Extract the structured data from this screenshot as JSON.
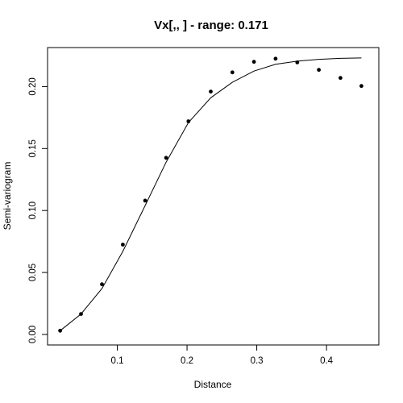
{
  "chart_data": {
    "type": "scatter",
    "title": "Vx[,,   ] - range: 0.171",
    "xlabel": "Distance",
    "ylabel": "Semi-variogram",
    "xlim": [
      0.0,
      0.475
    ],
    "ylim": [
      -0.0085,
      0.2315
    ],
    "x_ticks": [
      0.1,
      0.2,
      0.3,
      0.4
    ],
    "x_tick_labels": [
      "0.1",
      "0.2",
      "0.3",
      "0.4"
    ],
    "y_ticks": [
      0.0,
      0.05,
      0.1,
      0.15,
      0.2
    ],
    "y_tick_labels": [
      "0.00",
      "0.05",
      "0.10",
      "0.15",
      "0.20"
    ],
    "grid": false,
    "series": [
      {
        "kind": "points",
        "x": [
          0.018,
          0.048,
          0.078,
          0.108,
          0.14,
          0.17,
          0.202,
          0.234,
          0.265,
          0.296,
          0.327,
          0.358,
          0.389,
          0.42,
          0.45
        ],
        "y": [
          0.003,
          0.0165,
          0.0405,
          0.0725,
          0.108,
          0.1425,
          0.172,
          0.196,
          0.2115,
          0.22,
          0.2225,
          0.2195,
          0.2135,
          0.207,
          0.2005
        ]
      },
      {
        "kind": "line",
        "x": [
          0.018,
          0.048,
          0.078,
          0.108,
          0.14,
          0.17,
          0.202,
          0.234,
          0.265,
          0.296,
          0.327,
          0.358,
          0.389,
          0.42,
          0.45
        ],
        "y": [
          0.003,
          0.0165,
          0.037,
          0.067,
          0.104,
          0.139,
          0.171,
          0.191,
          0.2035,
          0.2125,
          0.218,
          0.2205,
          0.222,
          0.2228,
          0.2231
        ]
      }
    ]
  }
}
